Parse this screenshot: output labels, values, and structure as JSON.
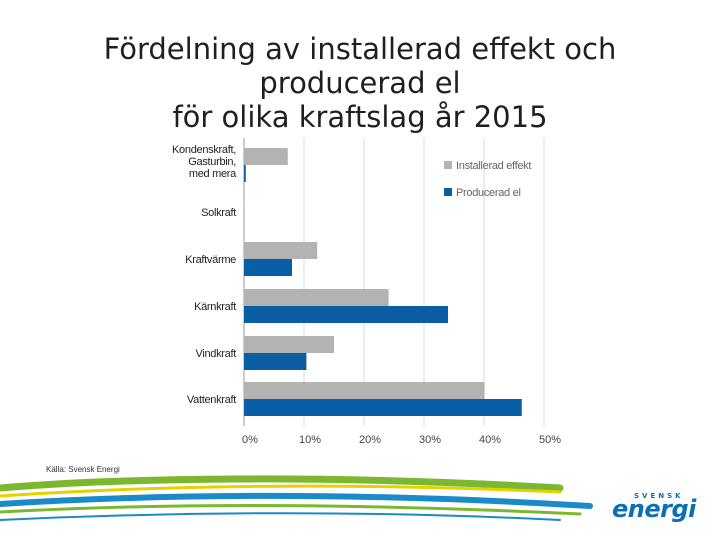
{
  "title_line1": "Fördelning av installerad effekt och producerad el",
  "title_line2": "för olika kraftslag år 2015",
  "source": "Källa: Svensk Energi",
  "logo_top": "SVENSK",
  "logo_main": "energi",
  "colors": {
    "installed": "#b3b3b3",
    "produced": "#0a5ea3",
    "grid": "#d9d9d9",
    "axis_text": "#444444",
    "swoosh_green": "#7cb82f",
    "swoosh_yellow": "#e6d200",
    "swoosh_blue": "#1b8ac8"
  },
  "chart_data": {
    "type": "bar",
    "orientation": "horizontal",
    "categories": [
      [
        "Kondenskraft,",
        "Gasturbin,",
        "med mera"
      ],
      [
        "Solkraft"
      ],
      [
        "Kraftvärme"
      ],
      [
        "Kärnkraft"
      ],
      [
        "Vindkraft"
      ],
      [
        "Vattenkraft"
      ]
    ],
    "series": [
      {
        "name": "Installerad effekt",
        "values": [
          7.3,
          0.1,
          12.2,
          24.1,
          15.0,
          40.1
        ]
      },
      {
        "name": "Producerad el",
        "values": [
          0.3,
          0.0,
          8.0,
          34.0,
          10.4,
          46.3
        ]
      }
    ],
    "xticks": [
      "0%",
      "10%",
      "20%",
      "30%",
      "40%",
      "50%"
    ],
    "xlim": [
      0,
      50
    ],
    "grid": true,
    "legend_position": "top-right"
  }
}
